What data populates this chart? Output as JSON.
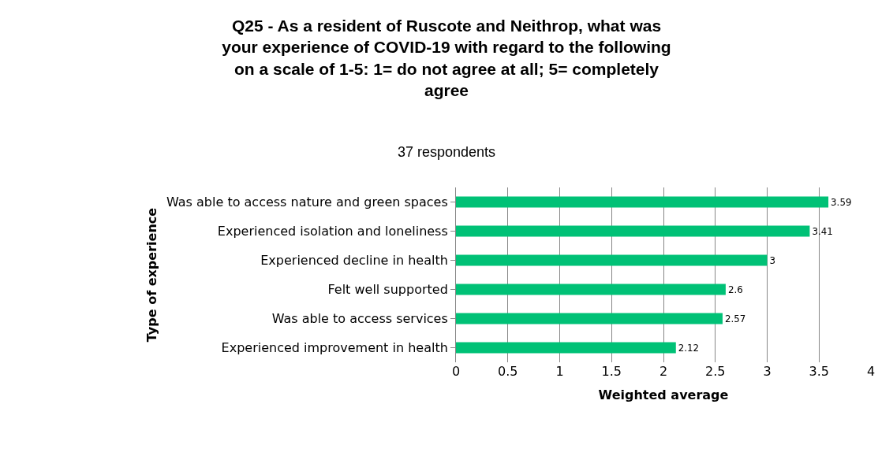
{
  "chart_data": {
    "type": "bar",
    "orientation": "horizontal",
    "title": "Q25 - As a resident of Ruscote and Neithrop, what was your experience of COVID-19 with regard to the following on a scale of 1-5: 1= do not agree at all; 5= completely agree",
    "subtitle": "37 respondents",
    "xlabel": "Weighted average",
    "ylabel": "Type of experience",
    "categories": [
      "Was able to access nature and green spaces",
      "Experienced isolation and loneliness",
      "Experienced decline in health",
      "Felt well supported",
      "Was able to access services",
      "Experienced improvement in health"
    ],
    "values": [
      3.59,
      3.41,
      3,
      2.6,
      2.57,
      2.12
    ],
    "color": "#00c176",
    "xlim": [
      0,
      4
    ],
    "xticks": [
      0,
      0.5,
      1,
      1.5,
      2,
      2.5,
      3,
      3.5,
      4
    ],
    "grid": "x",
    "data_labels": true,
    "legend": false
  }
}
